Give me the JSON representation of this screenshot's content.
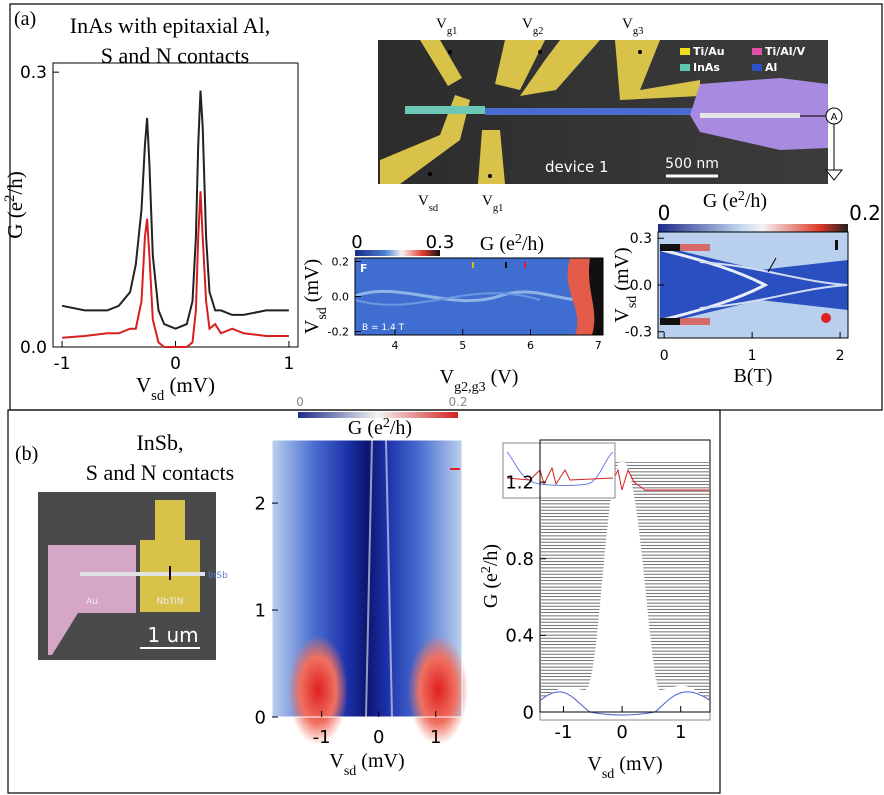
{
  "panel_a": {
    "label": "(a)",
    "title": [
      "InAs with epitaxial Al,",
      "S and N contacts"
    ],
    "conductance_trace": {
      "type": "line",
      "xlim": [
        -1.08,
        1.08
      ],
      "ylim": [
        0,
        0.31
      ],
      "xticks": [
        -1,
        0,
        1
      ],
      "yticks": [
        {
          "value": 0,
          "label": "0.0"
        },
        0.3
      ],
      "xlabel": [
        {
          "t": "V"
        },
        {
          "t": "sd",
          "sub": true
        },
        {
          "t": " (mV)"
        }
      ],
      "ylabel": [
        {
          "t": "G (e"
        },
        {
          "t": "2",
          "sup": true
        },
        {
          "t": "/h)"
        }
      ],
      "x": [
        -1,
        -0.8,
        -0.6,
        -0.5,
        -0.4,
        -0.35,
        -0.3,
        -0.27,
        -0.25,
        -0.23,
        -0.2,
        -0.15,
        -0.1,
        0,
        0.1,
        0.15,
        0.18,
        0.2,
        0.22,
        0.24,
        0.27,
        0.3,
        0.35,
        0.4,
        0.5,
        0.6,
        0.8,
        1
      ],
      "series": [
        {
          "color": "#222222",
          "values": [
            0.045,
            0.04,
            0.04,
            0.045,
            0.06,
            0.09,
            0.15,
            0.22,
            0.25,
            0.2,
            0.1,
            0.04,
            0.025,
            0.02,
            0.025,
            0.05,
            0.12,
            0.22,
            0.28,
            0.24,
            0.12,
            0.06,
            0.04,
            0.04,
            0.035,
            0.035,
            0.04,
            0.04
          ]
        },
        {
          "color": "#d62020",
          "values": [
            0.01,
            0.012,
            0.015,
            0.015,
            0.02,
            0.02,
            0.05,
            0.12,
            0.14,
            0.1,
            0.03,
            0.005,
            0,
            0,
            0,
            0.005,
            0.04,
            0.12,
            0.17,
            0.12,
            0.05,
            0.02,
            0.025,
            0.015,
            0.02,
            0.015,
            0.012,
            0.012
          ]
        }
      ]
    },
    "sem": {
      "gates_top": [
        [
          {
            "t": "V"
          },
          {
            "t": "g1",
            "sub": true
          }
        ],
        [
          {
            "t": "V"
          },
          {
            "t": "g2",
            "sub": true
          }
        ],
        [
          {
            "t": "V"
          },
          {
            "t": "g3",
            "sub": true
          }
        ]
      ],
      "gates_bottom": [
        [
          {
            "t": "V"
          },
          {
            "t": "sd",
            "sub": true
          }
        ],
        [
          {
            "t": "V"
          },
          {
            "t": "g1",
            "sub": true
          }
        ]
      ],
      "legend": [
        {
          "name": "Ti/Au",
          "color": "#f2e020"
        },
        {
          "name": "Ti/Al/V",
          "color": "#e04fa8"
        },
        {
          "name": "InAs",
          "color": "#5fc9b0"
        },
        {
          "name": "Al",
          "color": "#3050c8"
        }
      ],
      "device": "device 1",
      "scale": "500 nm",
      "meter": "A"
    },
    "map_gate": {
      "type": "heatmap",
      "colorbar": {
        "clim": [
          0,
          0.3
        ],
        "ticks": [
          0,
          0.3
        ],
        "label": [
          {
            "t": "G (e"
          },
          {
            "t": "2",
            "sup": true
          },
          {
            "t": "/h)"
          }
        ]
      },
      "letter": "F",
      "field": "B = 1.4 T",
      "xlim": [
        3.41,
        7.07
      ],
      "ylim": [
        -0.22,
        0.22
      ],
      "xticks": [
        4,
        5,
        6,
        7
      ],
      "yticks": [
        0.2,
        {
          "value": 0,
          "label": "0.0"
        },
        -0.2
      ],
      "xlabel": [
        {
          "t": "V"
        },
        {
          "t": "g2,g3",
          "sub": true
        },
        {
          "t": " (V)"
        }
      ],
      "ylabel": [
        {
          "t": "V"
        },
        {
          "t": "sd",
          "sub": true
        },
        {
          "t": " (mV)"
        }
      ]
    },
    "map_field": {
      "type": "heatmap",
      "colorbar": {
        "clim": [
          0,
          0.2
        ],
        "ticks": [
          0,
          0.2
        ],
        "label": [
          {
            "t": "G (e"
          },
          {
            "t": "2",
            "sup": true
          },
          {
            "t": "/h)"
          }
        ]
      },
      "xlim": [
        -0.07,
        2.09
      ],
      "ylim": [
        -0.34,
        0.34
      ],
      "xticks": [
        0,
        1,
        2
      ],
      "yticks": [
        0.3,
        {
          "value": 0,
          "label": "0.0"
        },
        -0.3
      ],
      "xlabel": [
        {
          "t": "B(T)"
        }
      ],
      "ylabel": [
        {
          "t": "V"
        },
        {
          "t": "sd",
          "sub": true
        },
        {
          "t": " (mV)"
        }
      ]
    }
  },
  "panel_b": {
    "label": "(b)",
    "title": [
      "InSb,",
      "S and N contacts"
    ],
    "sem": {
      "normal": "Au",
      "super": "NbTiN",
      "wire": "InSb",
      "scale": "1 um"
    },
    "map": {
      "type": "heatmap",
      "colorbar": {
        "clim": [
          0,
          0.2
        ],
        "ticks": [
          0,
          0.2
        ],
        "label": [
          {
            "t": "G (e"
          },
          {
            "t": "2",
            "sup": true
          },
          {
            "t": "/h)"
          }
        ]
      },
      "xlim": [
        -1.87,
        1.46
      ],
      "ylim": [
        0,
        2.59
      ],
      "xticks": [
        -1,
        0,
        1
      ],
      "yticks": [
        0,
        1,
        2
      ],
      "xlabel": [
        {
          "t": "V"
        },
        {
          "t": "sd",
          "sub": true
        },
        {
          "t": " (mV)"
        }
      ]
    },
    "waterfall": {
      "type": "waterfall",
      "xlim": [
        -1.4,
        1.5
      ],
      "ylim": [
        0,
        1.42
      ],
      "xticks": [
        -1,
        0,
        1
      ],
      "yticks": [
        0,
        0.4,
        0.8,
        1.2
      ],
      "xlabel": [
        {
          "t": "V"
        },
        {
          "t": "sd",
          "sub": true
        },
        {
          "t": " (mV)"
        }
      ],
      "ylabel": [
        {
          "t": "G (e"
        },
        {
          "t": "2",
          "sup": true
        },
        {
          "t": "/h)"
        }
      ]
    }
  }
}
